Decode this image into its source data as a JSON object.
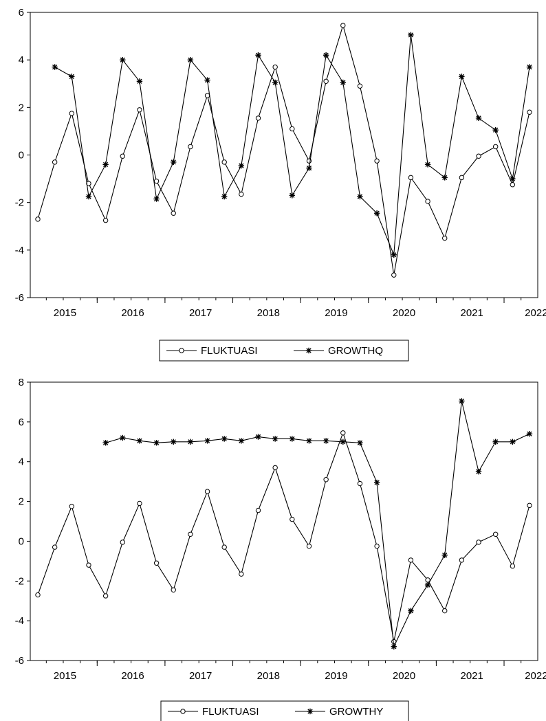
{
  "chart_data": [
    {
      "type": "line",
      "ylim": [
        -6,
        6
      ],
      "yticks": [
        -6,
        -4,
        -2,
        0,
        2,
        4,
        6
      ],
      "x_tick_labels": [
        "2015",
        "2016",
        "2017",
        "2018",
        "2019",
        "2020",
        "2021",
        "2022"
      ],
      "legend_position": "bottom-center",
      "series": [
        {
          "name": "FLUKTUASI",
          "marker": "circle",
          "values": [
            -2.7,
            -0.3,
            1.75,
            -1.2,
            -2.75,
            -0.05,
            1.9,
            -1.1,
            -2.45,
            0.35,
            2.5,
            -0.3,
            -1.65,
            1.55,
            3.7,
            1.1,
            -0.25,
            3.1,
            5.45,
            2.9,
            -0.25,
            -5.05,
            -0.95,
            -1.95,
            -3.5,
            -0.95,
            -0.05,
            0.35,
            -1.25,
            1.8
          ]
        },
        {
          "name": "GROWTHQ",
          "marker": "asterisk",
          "values": [
            null,
            3.7,
            3.3,
            -1.75,
            -0.4,
            4.0,
            3.1,
            -1.85,
            -0.3,
            4.0,
            3.15,
            -1.75,
            -0.45,
            4.2,
            3.05,
            -1.7,
            -0.55,
            4.2,
            3.05,
            -1.75,
            -2.45,
            -4.2,
            5.05,
            -0.4,
            -0.95,
            3.3,
            1.55,
            1.05,
            -1.0,
            3.7
          ]
        }
      ]
    },
    {
      "type": "line",
      "ylim": [
        -6,
        8
      ],
      "yticks": [
        -6,
        -4,
        -2,
        0,
        2,
        4,
        6,
        8
      ],
      "x_tick_labels": [
        "2015",
        "2016",
        "2017",
        "2018",
        "2019",
        "2020",
        "2021",
        "2022"
      ],
      "legend_position": "bottom-center",
      "series": [
        {
          "name": "FLUKTUASI",
          "marker": "circle",
          "values": [
            -2.7,
            -0.3,
            1.75,
            -1.2,
            -2.75,
            -0.05,
            1.9,
            -1.1,
            -2.45,
            0.35,
            2.5,
            -0.3,
            -1.65,
            1.55,
            3.7,
            1.1,
            -0.25,
            3.1,
            5.45,
            2.9,
            -0.25,
            -5.05,
            -0.95,
            -1.95,
            -3.5,
            -0.95,
            -0.05,
            0.35,
            -1.25,
            1.8
          ]
        },
        {
          "name": "GROWTHY",
          "marker": "asterisk",
          "values": [
            null,
            null,
            null,
            null,
            4.95,
            5.2,
            5.05,
            4.95,
            5.0,
            5.0,
            5.05,
            5.15,
            5.05,
            5.25,
            5.15,
            5.15,
            5.05,
            5.05,
            5.0,
            4.95,
            2.95,
            -5.3,
            -3.5,
            -2.2,
            -0.7,
            7.05,
            3.5,
            5.0,
            5.0,
            5.4
          ]
        }
      ]
    }
  ]
}
